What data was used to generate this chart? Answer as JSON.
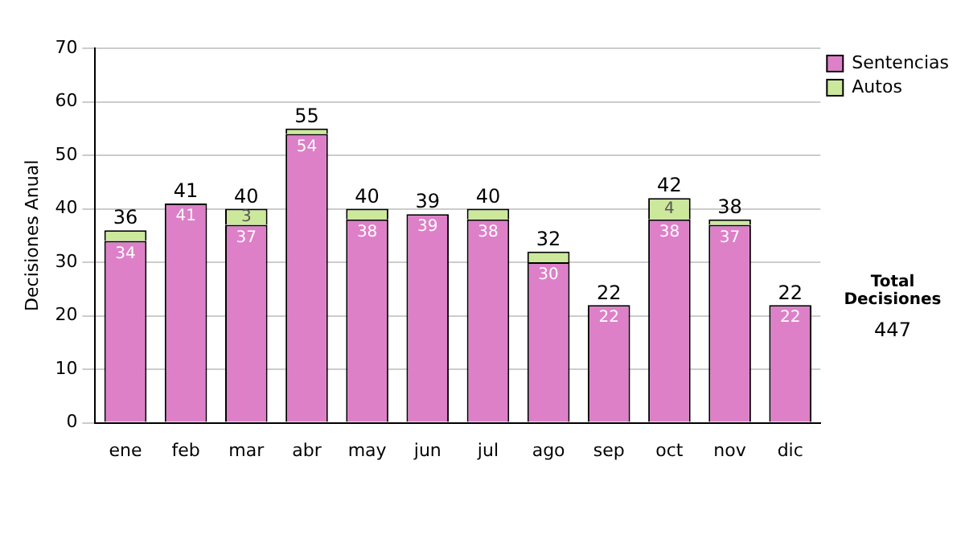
{
  "chart_data": {
    "type": "bar",
    "stacked": true,
    "categories": [
      "ene",
      "feb",
      "mar",
      "abr",
      "may",
      "jun",
      "jul",
      "ago",
      "sep",
      "oct",
      "nov",
      "dic"
    ],
    "series": [
      {
        "name": "Sentencias",
        "color": "#dd80c8",
        "values": [
          34,
          41,
          37,
          54,
          38,
          39,
          38,
          30,
          22,
          38,
          37,
          22
        ],
        "value_labels": [
          "34",
          "41",
          "37",
          "54",
          "38",
          "39",
          "38",
          "30",
          "22",
          "38",
          "37",
          "22"
        ]
      },
      {
        "name": "Autos",
        "color": "#cce89a",
        "values": [
          2,
          0,
          3,
          1,
          2,
          0,
          2,
          2,
          0,
          4,
          1,
          0
        ],
        "value_labels": [
          null,
          null,
          "3",
          null,
          null,
          null,
          null,
          null,
          null,
          "4",
          null,
          null
        ]
      }
    ],
    "totals": [
      "36",
      "41",
      "40",
      "55",
      "40",
      "39",
      "40",
      "32",
      "22",
      "42",
      "38",
      "22"
    ],
    "ylabel": "Decisiones Anual",
    "ylim": [
      0,
      70
    ],
    "yticks": [
      0,
      10,
      20,
      30,
      40,
      50,
      60,
      70
    ],
    "grid": "y",
    "legend": "right",
    "annotations": [
      "Total Decisiones",
      "447"
    ]
  }
}
